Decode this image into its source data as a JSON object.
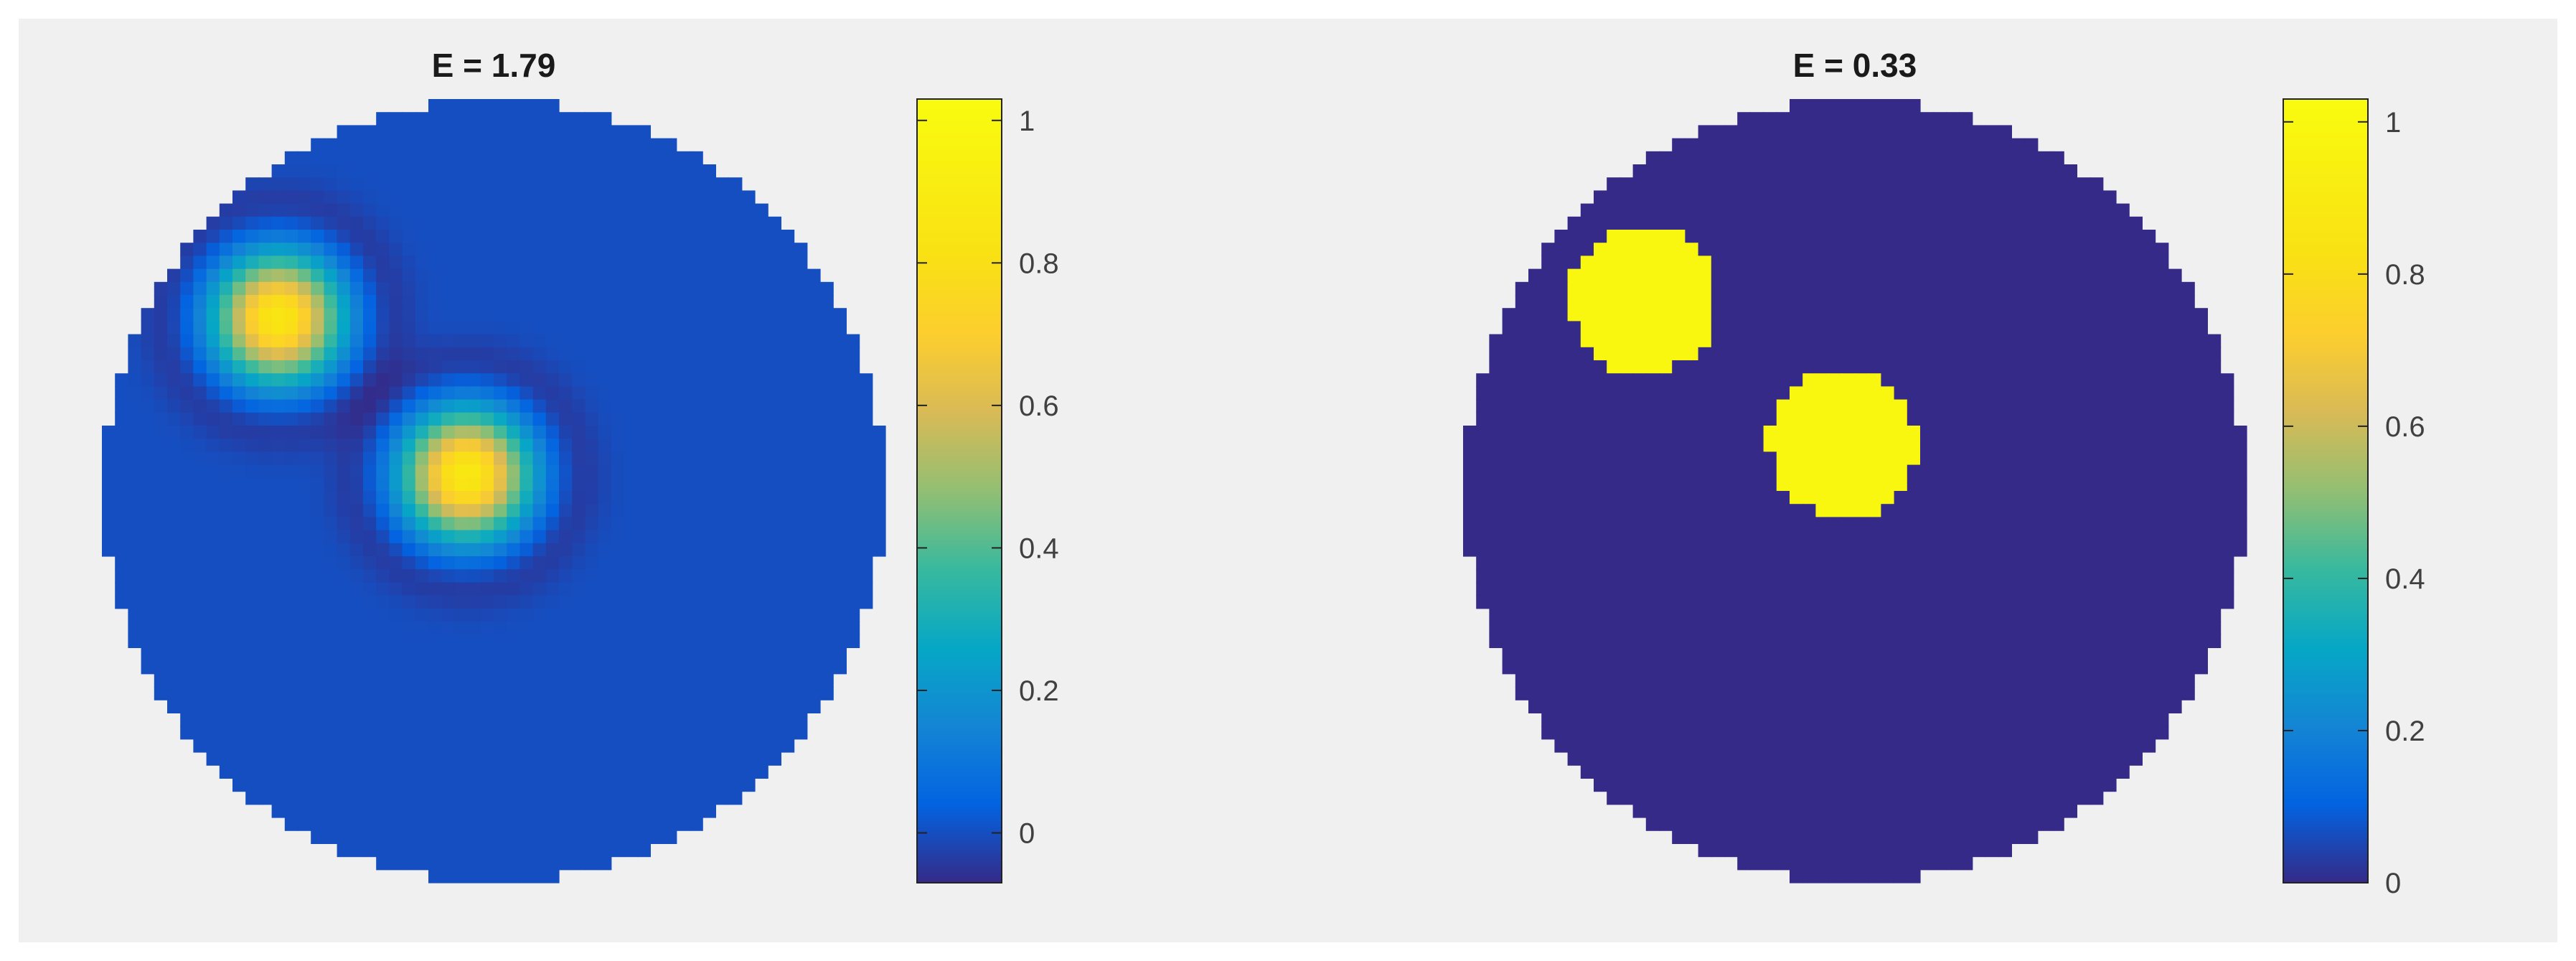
{
  "chart_data": [
    {
      "type": "heatmap",
      "title": "E = 1.79",
      "domain_shape": "circle",
      "colormap": "parula",
      "background_value": 0.0,
      "color_limits": [
        -0.07,
        1.03
      ],
      "colorbar": {
        "placement": "right",
        "ticks": [
          0,
          0.2,
          0.4,
          0.6,
          0.8,
          1
        ],
        "tick_labels": [
          "0",
          "0.2",
          "0.4",
          "0.6",
          "0.8",
          "1"
        ]
      },
      "features": [
        {
          "kind": "gaussian-blob",
          "center": [
            -0.55,
            0.44
          ],
          "peak": 0.85
        },
        {
          "kind": "gaussian-blob",
          "center": [
            -0.07,
            0.04
          ],
          "peak": 0.87
        }
      ]
    },
    {
      "type": "heatmap",
      "title": "E = 0.33",
      "domain_shape": "circle",
      "colormap": "parula",
      "background_value": 0.0,
      "color_limits": [
        0,
        1.03
      ],
      "colorbar": {
        "placement": "right",
        "ticks": [
          0,
          0.2,
          0.4,
          0.6,
          0.8,
          1
        ],
        "tick_labels": [
          "0",
          "0.2",
          "0.4",
          "0.6",
          "0.8",
          "1"
        ]
      },
      "features": [
        {
          "kind": "disc",
          "center": [
            -0.54,
            0.49
          ],
          "radius": 0.19,
          "value": 1.0
        },
        {
          "kind": "disc",
          "center": [
            -0.03,
            0.12
          ],
          "radius": 0.19,
          "value": 1.0
        }
      ]
    }
  ],
  "colors": {
    "figure_background": "#f0f0f0",
    "parula_low": "#352a87",
    "parula_high": "#f9fb0e"
  }
}
